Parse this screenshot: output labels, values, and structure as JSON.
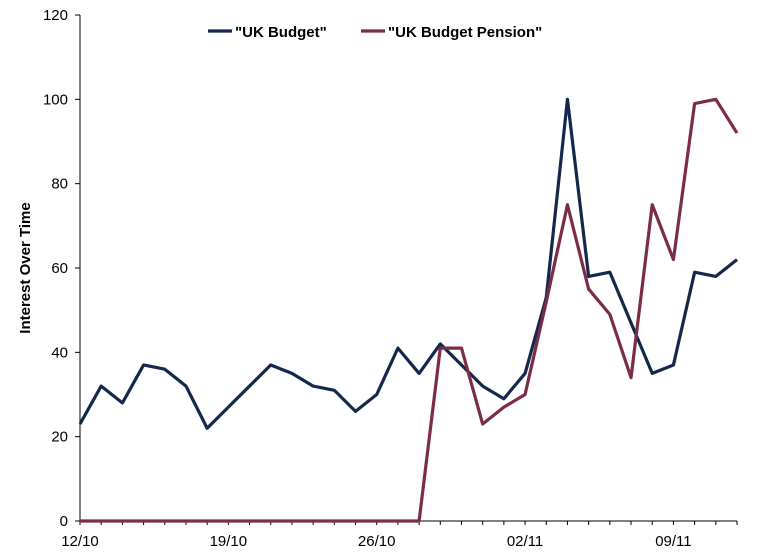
{
  "chart_data": {
    "type": "line",
    "title": "",
    "xlabel": "",
    "ylabel": "Interest Over Time",
    "ylim": [
      0,
      120
    ],
    "yticks": [
      0,
      20,
      40,
      60,
      80,
      100,
      120
    ],
    "x": [
      "12/10",
      "13/10",
      "14/10",
      "15/10",
      "16/10",
      "17/10",
      "18/10",
      "19/10",
      "20/10",
      "21/10",
      "22/10",
      "23/10",
      "24/10",
      "25/10",
      "26/10",
      "27/10",
      "28/10",
      "29/10",
      "30/10",
      "31/10",
      "01/11",
      "02/11",
      "03/11",
      "04/11",
      "05/11",
      "06/11",
      "07/11",
      "08/11",
      "09/11",
      "10/11",
      "11/11",
      "12/11"
    ],
    "xticks": [
      "12/10",
      "19/10",
      "26/10",
      "02/11",
      "09/11"
    ],
    "legend_position": "top-center",
    "grid": false,
    "series": [
      {
        "name": "\"UK Budget\"",
        "color": "#14284b",
        "values": [
          23,
          32,
          28,
          37,
          36,
          32,
          22,
          27,
          32,
          37,
          35,
          32,
          31,
          26,
          30,
          41,
          35,
          42,
          37,
          32,
          29,
          35,
          53,
          100,
          58,
          59,
          47,
          35,
          37,
          59,
          58,
          62
        ]
      },
      {
        "name": "\"UK Budget Pension\"",
        "color": "#7b2d47",
        "values": [
          0,
          0,
          0,
          0,
          0,
          0,
          0,
          0,
          0,
          0,
          0,
          0,
          0,
          0,
          0,
          0,
          0,
          41,
          41,
          23,
          27,
          30,
          52,
          75,
          55,
          49,
          34,
          75,
          62,
          99,
          100,
          92
        ]
      }
    ]
  }
}
